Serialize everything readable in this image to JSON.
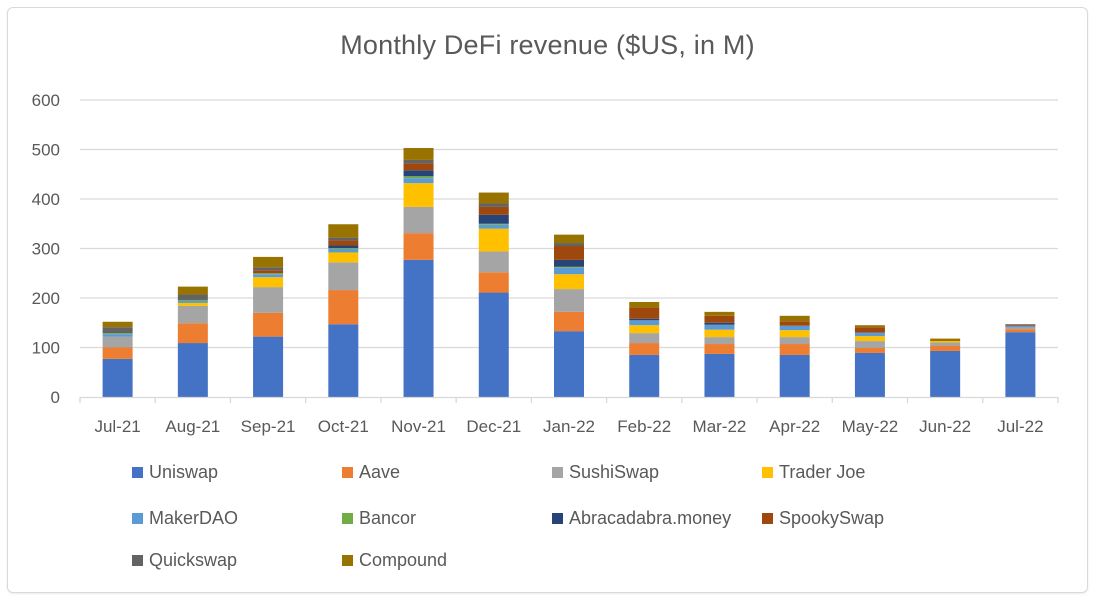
{
  "chart_data": {
    "type": "bar",
    "stacked": true,
    "title": "Monthly DeFi revenue ($US, in M)",
    "xlabel": "",
    "ylabel": "",
    "ylim": [
      0,
      600
    ],
    "yticks": [
      0,
      100,
      200,
      300,
      400,
      500,
      600
    ],
    "ytick_labels": [
      "0",
      "100",
      "200",
      "300",
      "400",
      "500",
      "600"
    ],
    "grid": true,
    "legend_position": "bottom",
    "categories": [
      "Jul-21",
      "Aug-21",
      "Sep-21",
      "Oct-21",
      "Nov-21",
      "Dec-21",
      "Jan-22",
      "Feb-22",
      "Mar-22",
      "Apr-22",
      "May-22",
      "Jun-22",
      "Jul-22"
    ],
    "series": [
      {
        "name": "Uniswap",
        "color": "#4472C4",
        "values": [
          77,
          109,
          122,
          147,
          277,
          211,
          133,
          85,
          87,
          85,
          89,
          93,
          131
        ]
      },
      {
        "name": "Aave",
        "color": "#ED7D31",
        "values": [
          23,
          40,
          48,
          69,
          54,
          41,
          39,
          24,
          20,
          22,
          10,
          10,
          6
        ]
      },
      {
        "name": "SushiSwap",
        "color": "#A5A5A5",
        "values": [
          22,
          35,
          52,
          56,
          53,
          42,
          46,
          20,
          14,
          14,
          14,
          7,
          3
        ]
      },
      {
        "name": "Trader Joe",
        "color": "#FFC000",
        "values": [
          0,
          6,
          20,
          20,
          48,
          46,
          30,
          16,
          15,
          14,
          10,
          3,
          0
        ]
      },
      {
        "name": "MakerDAO",
        "color": "#5B9BD5",
        "values": [
          5,
          4,
          6,
          7,
          10,
          8,
          13,
          10,
          10,
          9,
          7,
          0,
          3
        ]
      },
      {
        "name": "Bancor",
        "color": "#70AD47",
        "values": [
          2,
          2,
          2,
          2,
          4,
          2,
          2,
          0,
          0,
          0,
          0,
          0,
          0
        ]
      },
      {
        "name": "Abracadabra.money",
        "color": "#264478",
        "values": [
          0,
          0,
          0,
          5,
          12,
          18,
          14,
          3,
          4,
          0,
          0,
          0,
          0
        ]
      },
      {
        "name": "SpookySwap",
        "color": "#9E480E",
        "values": [
          0,
          0,
          6,
          10,
          14,
          16,
          28,
          23,
          14,
          9,
          11,
          0,
          2
        ]
      },
      {
        "name": "Quickswap",
        "color": "#636363",
        "values": [
          12,
          11,
          6,
          6,
          7,
          7,
          6,
          0,
          0,
          0,
          0,
          0,
          2
        ]
      },
      {
        "name": "Compound",
        "color": "#997300",
        "values": [
          11,
          16,
          21,
          27,
          24,
          22,
          17,
          11,
          8,
          11,
          4,
          5,
          0
        ]
      }
    ]
  }
}
